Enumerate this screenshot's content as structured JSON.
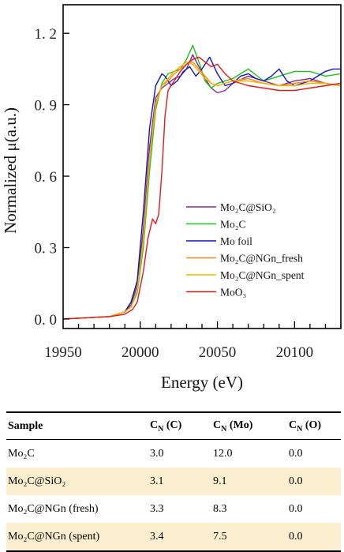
{
  "chart_data": {
    "type": "line",
    "xlabel": "Energy (eV)",
    "ylabel": "Normalized μ(a.u.)",
    "xlim": [
      19950,
      20130
    ],
    "ylim": [
      -0.04,
      1.32
    ],
    "x_ticks": [
      "19950",
      "20000",
      "20050",
      "20100"
    ],
    "y_ticks": [
      "0. 0",
      "0. 3",
      "0. 6",
      "0. 9",
      "1. 2"
    ],
    "legend_position": "lower-right",
    "series": [
      {
        "name": "Mo₂C@SiO₂",
        "color": "#7b2d8e",
        "x": [
          19950,
          19980,
          19990,
          19994,
          19998,
          20002,
          20006,
          20010,
          20014,
          20018,
          20022,
          20026,
          20030,
          20034,
          20038,
          20042,
          20046,
          20050,
          20055,
          20060,
          20070,
          20080,
          20090,
          20100,
          20110,
          20120,
          20130
        ],
        "y": [
          0,
          0.01,
          0.03,
          0.06,
          0.14,
          0.38,
          0.72,
          0.93,
          0.97,
          0.99,
          1.01,
          1.02,
          1.05,
          1.11,
          1.06,
          1.01,
          0.97,
          0.95,
          0.96,
          0.99,
          1.02,
          1.0,
          0.98,
          1.0,
          1.01,
          0.99,
          0.98
        ]
      },
      {
        "name": "Mo₂C",
        "color": "#22c022",
        "x": [
          19950,
          19980,
          19990,
          19994,
          19998,
          20002,
          20006,
          20010,
          20014,
          20018,
          20022,
          20026,
          20030,
          20034,
          20038,
          20042,
          20046,
          20050,
          20055,
          20060,
          20070,
          20080,
          20090,
          20100,
          20110,
          20120,
          20130
        ],
        "y": [
          0,
          0.01,
          0.03,
          0.05,
          0.11,
          0.3,
          0.62,
          0.88,
          0.99,
          1.03,
          1.04,
          1.05,
          1.09,
          1.15,
          1.08,
          1.0,
          0.97,
          0.99,
          1.0,
          1.01,
          1.05,
          1.0,
          1.02,
          1.04,
          1.04,
          1.02,
          1.03
        ]
      },
      {
        "name": "Mo foil",
        "color": "#1414c8",
        "x": [
          19950,
          19980,
          19990,
          19994,
          19998,
          20002,
          20006,
          20010,
          20014,
          20016,
          20020,
          20024,
          20028,
          20032,
          20036,
          20040,
          20045,
          20050,
          20055,
          20060,
          20065,
          20070,
          20075,
          20080,
          20085,
          20090,
          20095,
          20100,
          20105,
          20110,
          20115,
          20120,
          20125,
          20130
        ],
        "y": [
          0,
          0.01,
          0.03,
          0.07,
          0.16,
          0.45,
          0.8,
          0.98,
          1.03,
          1.02,
          0.98,
          1.0,
          1.04,
          1.06,
          1.02,
          1.05,
          1.1,
          1.03,
          0.98,
          0.99,
          1.02,
          1.03,
          1.01,
          1.0,
          1.02,
          1.05,
          1.0,
          0.98,
          0.99,
          1.0,
          1.02,
          1.04,
          1.05,
          1.05
        ]
      },
      {
        "name": "Mo₂C@NGn_fresh",
        "color": "#ff8a1a",
        "x": [
          19950,
          19980,
          19990,
          19994,
          19998,
          20002,
          20006,
          20010,
          20014,
          20018,
          20022,
          20026,
          20030,
          20034,
          20038,
          20042,
          20046,
          20050,
          20055,
          20060,
          20070,
          20080,
          20090,
          20100,
          20110,
          20120,
          20130
        ],
        "y": [
          0,
          0.01,
          0.03,
          0.05,
          0.12,
          0.34,
          0.68,
          0.91,
          0.98,
          1.0,
          1.03,
          1.05,
          1.07,
          1.08,
          1.05,
          1.02,
          0.99,
          0.98,
          0.99,
          1.0,
          1.01,
          0.99,
          0.98,
          0.99,
          1.0,
          0.99,
          0.98
        ]
      },
      {
        "name": "Mo₂C@NGn_spent",
        "color": "#f0b400",
        "x": [
          19950,
          19980,
          19990,
          19994,
          19998,
          20002,
          20006,
          20010,
          20014,
          20018,
          20022,
          20026,
          20030,
          20034,
          20038,
          20042,
          20046,
          20050,
          20055,
          20060,
          20070,
          20080,
          20090,
          20100,
          20110,
          20120,
          20130
        ],
        "y": [
          0,
          0.01,
          0.03,
          0.05,
          0.12,
          0.33,
          0.67,
          0.9,
          0.98,
          1.01,
          1.04,
          1.06,
          1.08,
          1.07,
          1.04,
          1.01,
          0.99,
          0.98,
          0.99,
          1.0,
          1.0,
          0.99,
          0.98,
          0.98,
          0.99,
          0.99,
          0.98
        ]
      },
      {
        "name": "MoO₃",
        "color": "#e41a1a",
        "x": [
          19950,
          19980,
          19990,
          19995,
          19998,
          20002,
          20005,
          20008,
          20010,
          20012,
          20014,
          20016,
          20018,
          20022,
          20026,
          20030,
          20034,
          20038,
          20042,
          20046,
          20050,
          20055,
          20060,
          20070,
          20080,
          20090,
          20100,
          20110,
          20120,
          20130
        ],
        "y": [
          0,
          0.01,
          0.02,
          0.04,
          0.07,
          0.2,
          0.34,
          0.42,
          0.4,
          0.44,
          0.62,
          0.85,
          0.96,
          1.0,
          1.04,
          1.07,
          1.09,
          1.1,
          1.08,
          1.06,
          1.07,
          1.03,
          1.0,
          0.98,
          0.97,
          0.96,
          0.96,
          0.97,
          0.98,
          0.99
        ]
      }
    ]
  },
  "table": {
    "headers": [
      {
        "base": "Sample",
        "sub": ""
      },
      {
        "base": "C",
        "sub": "N",
        "tail": " (C)"
      },
      {
        "base": "C",
        "sub": "N",
        "tail": " (Mo)"
      },
      {
        "base": "C",
        "sub": "N",
        "tail": " (O)"
      }
    ],
    "rows": [
      [
        "Mo₂C",
        "3.0",
        "12.0",
        "0.0"
      ],
      [
        "Mo₂C@SiO₂",
        "3.1",
        "9.1",
        "0.0"
      ],
      [
        "Mo₂C@NGn (fresh)",
        "3.3",
        "8.3",
        "0.0"
      ],
      [
        "Mo₂C@NGn (spent)",
        "3.4",
        "7.5",
        "0.0"
      ]
    ]
  }
}
